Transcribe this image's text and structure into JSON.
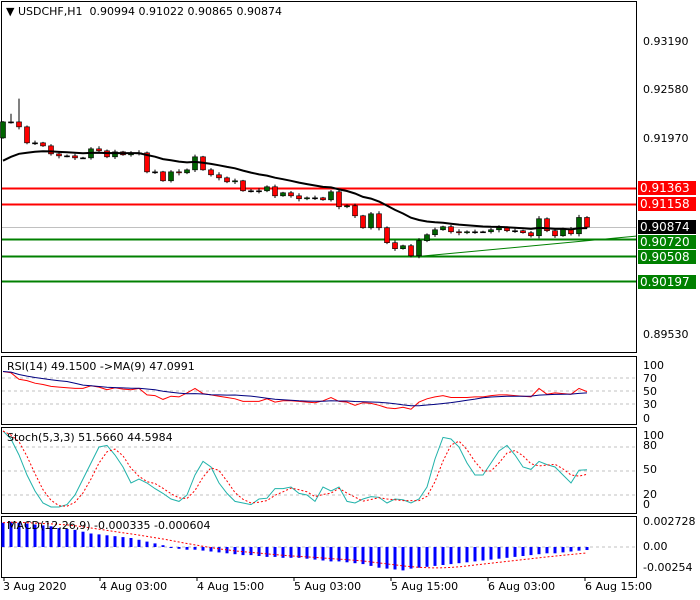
{
  "header": {
    "symbol": "USDCHF,H1",
    "open": "0.90994",
    "high": "0.91022",
    "low": "0.90865",
    "close": "0.90874"
  },
  "price_axis": [
    "0.93190",
    "0.92580",
    "0.91970",
    "0.89530"
  ],
  "levels": [
    {
      "price": 0.91363,
      "label": "0.91363",
      "color": "#ff0000"
    },
    {
      "price": 0.91158,
      "label": "0.91158",
      "color": "#ff0000"
    },
    {
      "price": 0.90874,
      "label": "0.90874",
      "color": "#000000"
    },
    {
      "price": 0.9072,
      "label": "0.90720",
      "color": "#008000"
    },
    {
      "price": 0.90508,
      "label": "0.90508",
      "color": "#008000"
    },
    {
      "price": 0.90197,
      "label": "0.90197",
      "color": "#008000"
    }
  ],
  "colors": {
    "bull": "#006400",
    "bear": "#ff0000",
    "ma": "#000000",
    "rsi": "#ff0000",
    "rsi_ma": "#000080",
    "stoch_main": "#20b2aa",
    "stoch_signal": "#ff0000",
    "macd_hist": "#0000ff",
    "macd_signal": "#ff0000"
  },
  "candles": {
    "first_open": 0.9199,
    "closes": [
      0.9219,
      0.9219,
      0.92128,
      0.91928,
      0.91928,
      0.9189,
      0.9179,
      0.91765,
      0.91765,
      0.9174,
      0.9174,
      0.91853,
      0.91828,
      0.91753,
      0.91815,
      0.91778,
      0.91803,
      0.91803,
      0.91565,
      0.91565,
      0.91453,
      0.91565,
      0.91553,
      0.9159,
      0.91753,
      0.9159,
      0.91528,
      0.9149,
      0.9144,
      0.91453,
      0.91328,
      0.91328,
      0.91328,
      0.91378,
      0.91265,
      0.91303,
      0.91265,
      0.91228,
      0.9124,
      0.9124,
      0.91215,
      0.91315,
      0.91128,
      0.9114,
      0.91015,
      0.90865,
      0.9104,
      0.90865,
      0.90678,
      0.90603,
      0.9064,
      0.90515,
      0.90703,
      0.90778,
      0.9084,
      0.90878,
      0.90815,
      0.90803,
      0.90815,
      0.90815,
      0.90815,
      0.9084,
      0.90865,
      0.90828,
      0.90828,
      0.90803,
      0.90765,
      0.90978,
      0.90828,
      0.90765,
      0.90853,
      0.9079,
      0.90994,
      0.90874
    ]
  },
  "rsi": {
    "label": "RSI(14) 49.1500  ->MA(9) 47.0991",
    "axis": [
      "100",
      "70",
      "50",
      "30",
      "0"
    ],
    "values": [
      80,
      78,
      68,
      66,
      62,
      60,
      57,
      56,
      55,
      54,
      54,
      58,
      56,
      52,
      55,
      53,
      52,
      54,
      44,
      43,
      37,
      42,
      41,
      47,
      54,
      46,
      44,
      42,
      40,
      38,
      34,
      34,
      34,
      38,
      33,
      35,
      35,
      34,
      33,
      32,
      35,
      40,
      34,
      33,
      28,
      32,
      31,
      28,
      24,
      23,
      25,
      22,
      33,
      38,
      41,
      43,
      40,
      40,
      40,
      41,
      41,
      43,
      44,
      44,
      43,
      42,
      41,
      54,
      45,
      47,
      46,
      45,
      54,
      49.15
    ]
  },
  "stoch": {
    "label": "Stoch(5,3,3) 51.5660 44.5984",
    "axis": [
      "100",
      "80",
      "50",
      "20",
      "0"
    ],
    "values": [
      100,
      90,
      70,
      45,
      25,
      10,
      5,
      5,
      8,
      20,
      40,
      60,
      80,
      82,
      70,
      55,
      35,
      40,
      35,
      28,
      22,
      15,
      12,
      20,
      45,
      62,
      55,
      35,
      22,
      12,
      10,
      8,
      15,
      16,
      28,
      28,
      30,
      22,
      20,
      12,
      30,
      25,
      30,
      12,
      10,
      15,
      18,
      17,
      10,
      15,
      14,
      10,
      15,
      30,
      65,
      92,
      90,
      80,
      60,
      45,
      45,
      60,
      75,
      82,
      70,
      55,
      52,
      62,
      58,
      55,
      45,
      35,
      51,
      51.566
    ]
  },
  "macd": {
    "label": "MACD(12,26,9) -0.000335 -0.000604",
    "axis": [
      "0.002728",
      "0.00",
      "-0.00254"
    ],
    "values": [
      0.0027,
      0.0028,
      0.0027,
      0.0026,
      0.0025,
      0.0024,
      0.0023,
      0.0021,
      0.002,
      0.0019,
      0.0017,
      0.0015,
      0.0014,
      0.0013,
      0.0012,
      0.0011,
      0.001,
      0.0008,
      0.0006,
      0.0004,
      0.0002,
      -0.0001,
      -0.0002,
      -0.0003,
      -0.0003,
      -0.0004,
      -0.0005,
      -0.0006,
      -0.0007,
      -0.0008,
      -0.0009,
      -0.0009,
      -0.001,
      -0.0011,
      -0.0011,
      -0.0012,
      -0.0012,
      -0.0012,
      -0.0013,
      -0.0014,
      -0.0015,
      -0.0016,
      -0.0016,
      -0.0017,
      -0.0018,
      -0.0019,
      -0.0021,
      -0.0023,
      -0.0024,
      -0.0025,
      -0.0026,
      -0.0024,
      -0.0023,
      -0.0022,
      -0.0021,
      -0.002,
      -0.0019,
      -0.0018,
      -0.0017,
      -0.0016,
      -0.0015,
      -0.0014,
      -0.0013,
      -0.0012,
      -0.0011,
      -0.001,
      -0.0009,
      -0.0008,
      -0.0007,
      -0.0007,
      -0.0006,
      -0.0005,
      -0.0004,
      -0.000335
    ]
  },
  "time_axis": [
    "3 Aug 2020",
    "4 Aug 03:00",
    "4 Aug 15:00",
    "5 Aug 03:00",
    "5 Aug 15:00",
    "6 Aug 03:00",
    "6 Aug 15:00"
  ],
  "trendline": {
    "from_price": 0.90508,
    "to_price": 0.9076
  }
}
